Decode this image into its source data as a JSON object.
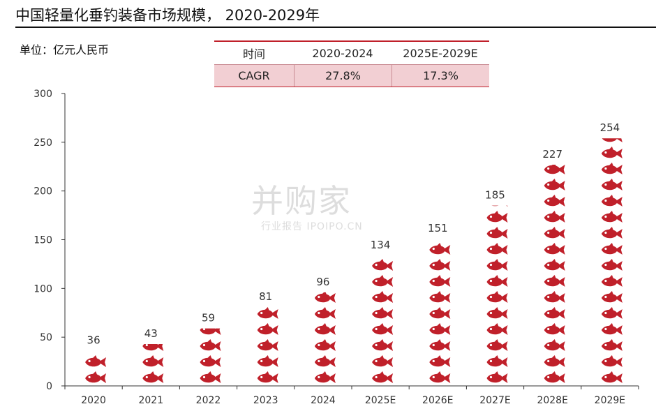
{
  "header": {
    "title": "中国轻量化垂钓装备市场规模， 2020-2029年",
    "unit_label": "单位：亿元人民币"
  },
  "cagr_table": {
    "headers": [
      "时间",
      "2020-2024",
      "2025E-2029E"
    ],
    "row": [
      "CAGR",
      "27.8%",
      "17.3%"
    ]
  },
  "watermark": {
    "brand": "并购家",
    "sub": "行业报告 IPOIPO.CN"
  },
  "colors": {
    "fish": "#c0202a",
    "table_rule": "#c0202a",
    "table_fill": "#f2cfd3"
  },
  "chart_data": {
    "type": "bar",
    "mark_style": "stacked fish pictograph",
    "categories": [
      "2020",
      "2021",
      "2022",
      "2023",
      "2024",
      "2025E",
      "2026E",
      "2027E",
      "2028E",
      "2029E"
    ],
    "values": [
      36,
      43,
      59,
      81,
      96,
      134,
      151,
      185,
      227,
      254
    ],
    "data_labels": [
      "36",
      "43",
      "59",
      "81",
      "96",
      "134",
      "151",
      "185",
      "227",
      "254"
    ],
    "ylim": [
      0,
      300
    ],
    "yticks": [
      0,
      50,
      100,
      150,
      200,
      250,
      300
    ],
    "title": "",
    "xlabel": "",
    "ylabel": "",
    "grid": false,
    "legend": "none"
  }
}
